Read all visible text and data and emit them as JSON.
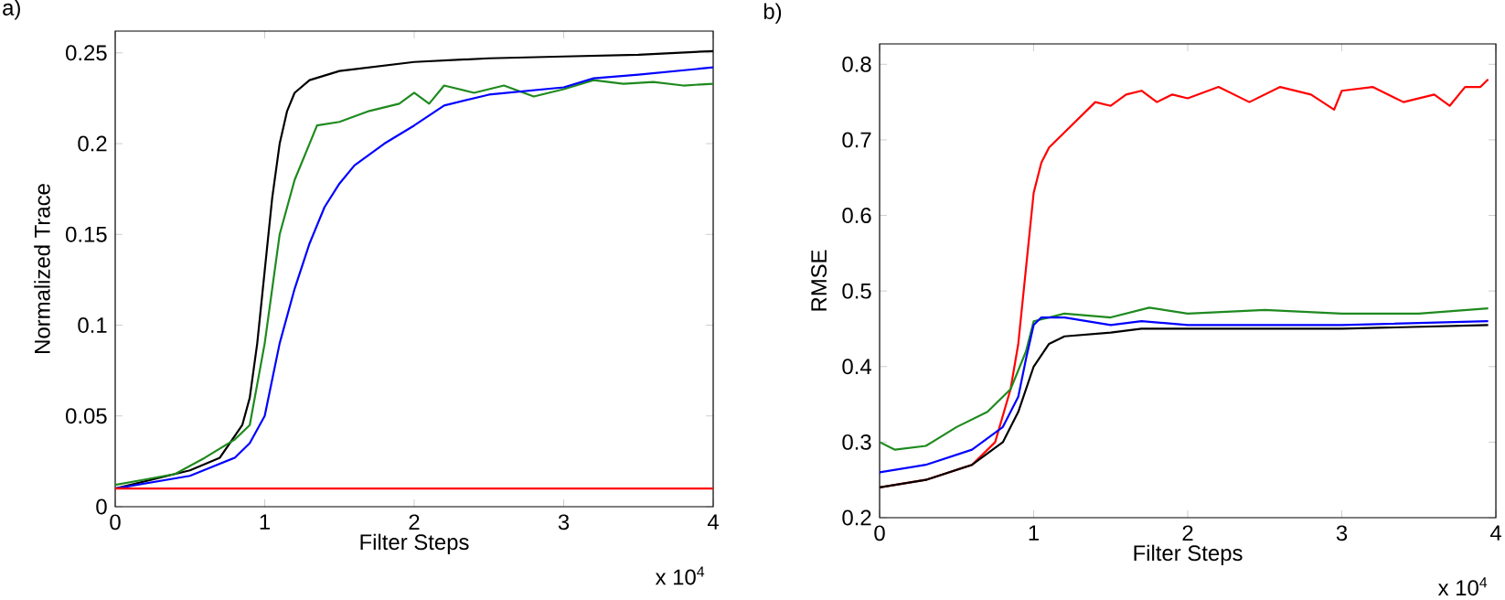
{
  "chart_data": [
    {
      "type": "line",
      "title": "a)",
      "xlabel": "Filter Steps",
      "ylabel": "Normalized Trace",
      "annotations": [
        "x 10$^{4}$"
      ],
      "xlim": [
        0,
        4
      ],
      "xticks": [
        0,
        1,
        2,
        3,
        4
      ],
      "ylim": [
        0,
        0.262
      ],
      "yticks": [
        0,
        0.05,
        0.1,
        0.15,
        0.2,
        0.25
      ],
      "grid": false,
      "marker": "none",
      "line_style": "solid",
      "series": [
        {
          "color": "#000000",
          "x": [
            0,
            0.5,
            0.7,
            0.85,
            0.9,
            0.95,
            1.0,
            1.05,
            1.1,
            1.15,
            1.2,
            1.3,
            1.5,
            2,
            2.5,
            3,
            3.5,
            4
          ],
          "values": [
            0.01,
            0.02,
            0.027,
            0.045,
            0.06,
            0.09,
            0.13,
            0.17,
            0.2,
            0.218,
            0.228,
            0.235,
            0.24,
            0.245,
            0.247,
            0.248,
            0.249,
            0.251
          ]
        },
        {
          "color": "#1e8a1e",
          "x": [
            0,
            0.2,
            0.4,
            0.6,
            0.8,
            0.9,
            1.0,
            1.05,
            1.1,
            1.2,
            1.3,
            1.35,
            1.5,
            1.7,
            1.9,
            2.0,
            2.1,
            2.2,
            2.4,
            2.6,
            2.8,
            3.0,
            3.2,
            3.4,
            3.6,
            3.8,
            4
          ],
          "values": [
            0.012,
            0.015,
            0.018,
            0.027,
            0.037,
            0.045,
            0.09,
            0.12,
            0.15,
            0.18,
            0.2,
            0.21,
            0.212,
            0.218,
            0.222,
            0.228,
            0.222,
            0.232,
            0.228,
            0.232,
            0.226,
            0.23,
            0.235,
            0.233,
            0.234,
            0.232,
            0.233
          ]
        },
        {
          "color": "#0000ff",
          "x": [
            0,
            0.5,
            0.8,
            0.9,
            1.0,
            1.05,
            1.1,
            1.2,
            1.3,
            1.4,
            1.5,
            1.6,
            1.8,
            2.0,
            2.2,
            2.5,
            3,
            3.2,
            3.5,
            4
          ],
          "values": [
            0.01,
            0.017,
            0.027,
            0.035,
            0.05,
            0.07,
            0.09,
            0.12,
            0.145,
            0.165,
            0.178,
            0.188,
            0.2,
            0.21,
            0.221,
            0.227,
            0.231,
            0.236,
            0.238,
            0.242
          ]
        },
        {
          "color": "#ff0000",
          "x": [
            0,
            4
          ],
          "values": [
            0.01,
            0.01
          ]
        }
      ]
    },
    {
      "type": "line",
      "title": "b)",
      "xlabel": "Filter Steps",
      "ylabel": "RMSE",
      "annotations": [
        "x 10$^{4}$"
      ],
      "xlim": [
        0,
        4
      ],
      "xticks": [
        0,
        1,
        2,
        3,
        4
      ],
      "ylim": [
        0.2,
        0.827
      ],
      "yticks": [
        0.2,
        0.3,
        0.4,
        0.5,
        0.6,
        0.7,
        0.8
      ],
      "grid": false,
      "marker": "none",
      "line_style": "solid",
      "series": [
        {
          "color": "#ff0000",
          "x": [
            0,
            0.3,
            0.6,
            0.75,
            0.85,
            0.9,
            0.95,
            1.0,
            1.05,
            1.1,
            1.2,
            1.3,
            1.4,
            1.5,
            1.6,
            1.7,
            1.8,
            1.9,
            2.0,
            2.2,
            2.4,
            2.6,
            2.8,
            2.95,
            3.0,
            3.2,
            3.4,
            3.6,
            3.7,
            3.8,
            3.9,
            3.95
          ],
          "values": [
            0.24,
            0.25,
            0.27,
            0.3,
            0.37,
            0.43,
            0.53,
            0.63,
            0.67,
            0.69,
            0.71,
            0.73,
            0.75,
            0.745,
            0.76,
            0.765,
            0.75,
            0.76,
            0.755,
            0.77,
            0.75,
            0.77,
            0.76,
            0.74,
            0.765,
            0.77,
            0.75,
            0.76,
            0.745,
            0.77,
            0.77,
            0.78
          ]
        },
        {
          "color": "#1e8a1e",
          "x": [
            0,
            0.1,
            0.3,
            0.5,
            0.7,
            0.85,
            0.95,
            1.0,
            1.2,
            1.5,
            1.75,
            2,
            2.5,
            3,
            3.5,
            3.95
          ],
          "values": [
            0.3,
            0.29,
            0.295,
            0.32,
            0.34,
            0.37,
            0.42,
            0.46,
            0.47,
            0.465,
            0.478,
            0.47,
            0.475,
            0.47,
            0.47,
            0.477
          ]
        },
        {
          "color": "#0000ff",
          "x": [
            0,
            0.3,
            0.6,
            0.8,
            0.9,
            0.95,
            1.0,
            1.05,
            1.2,
            1.5,
            1.7,
            2,
            3,
            3.95
          ],
          "values": [
            0.26,
            0.27,
            0.29,
            0.32,
            0.36,
            0.41,
            0.455,
            0.465,
            0.465,
            0.455,
            0.46,
            0.455,
            0.455,
            0.46
          ]
        },
        {
          "color": "#000000",
          "x": [
            0,
            0.3,
            0.6,
            0.8,
            0.9,
            1.0,
            1.1,
            1.2,
            1.5,
            1.7,
            2,
            3,
            3.95
          ],
          "values": [
            0.24,
            0.25,
            0.27,
            0.3,
            0.34,
            0.4,
            0.43,
            0.44,
            0.445,
            0.45,
            0.45,
            0.45,
            0.455
          ]
        }
      ]
    }
  ]
}
